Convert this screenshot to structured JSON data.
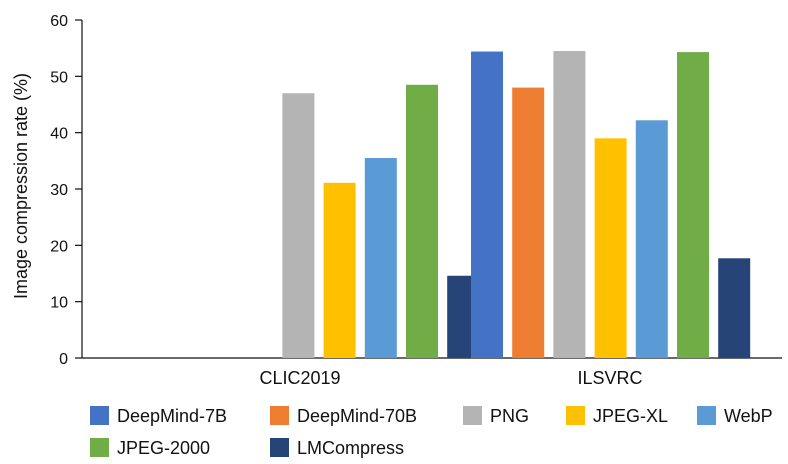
{
  "chart_data": {
    "type": "bar",
    "title": "",
    "xlabel": "",
    "ylabel": "Image compression rate (%)",
    "ylim": [
      0,
      60
    ],
    "yticks": [
      0,
      10,
      20,
      30,
      40,
      50,
      60
    ],
    "grid": false,
    "legend_position": "bottom",
    "categories": [
      "CLIC2019",
      "ILSVRC"
    ],
    "series": [
      {
        "name": "DeepMind-7B",
        "color": "#4472C4",
        "values": [
          null,
          54.4
        ]
      },
      {
        "name": "DeepMind-70B",
        "color": "#ED7D31",
        "values": [
          null,
          48.0
        ]
      },
      {
        "name": "PNG",
        "color": "#B4B4B4",
        "values": [
          47.0,
          54.5
        ]
      },
      {
        "name": "JPEG-XL",
        "color": "#FFC000",
        "values": [
          31.1,
          39.0
        ]
      },
      {
        "name": "WebP",
        "color": "#5B9BD5",
        "values": [
          35.5,
          42.2
        ]
      },
      {
        "name": "JPEG-2000",
        "color": "#70AD47",
        "values": [
          48.5,
          54.3
        ]
      },
      {
        "name": "LMCompress",
        "color": "#264478",
        "values": [
          14.6,
          17.7
        ]
      }
    ]
  }
}
